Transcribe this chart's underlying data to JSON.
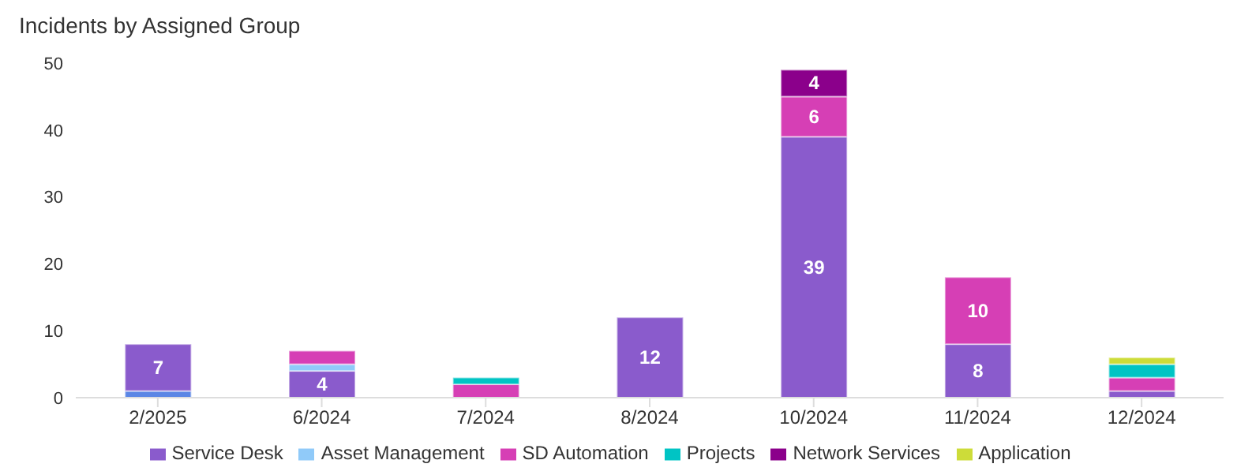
{
  "chart_data": {
    "type": "bar",
    "title": "Incidents by Assigned Group",
    "categories": [
      "2/2025",
      "6/2024",
      "7/2024",
      "8/2024",
      "10/2024",
      "11/2024",
      "12/2024"
    ],
    "stacked": true,
    "ylim": [
      0,
      50
    ],
    "yticks": [
      0,
      10,
      20,
      30,
      40,
      50
    ],
    "grid": false,
    "legend": "bottom",
    "series": [
      {
        "color": "#5b86e5",
        "values": [
          1,
          0,
          0,
          0,
          0,
          0,
          0
        ]
      },
      {
        "name": "Service Desk",
        "color": "#8a5bcc",
        "values": [
          7,
          4,
          0,
          12,
          39,
          8,
          1
        ],
        "value_labels": [
          "7",
          "4",
          null,
          "12",
          "39",
          "8",
          null
        ]
      },
      {
        "name": "Asset Management",
        "color": "#90caf9",
        "values": [
          0,
          1,
          0,
          0,
          0,
          0,
          0
        ]
      },
      {
        "name": "SD Automation",
        "color": "#d63fb5",
        "values": [
          0,
          2,
          2,
          0,
          6,
          10,
          2
        ],
        "value_labels": [
          null,
          null,
          null,
          null,
          "6",
          "10",
          null
        ]
      },
      {
        "name": "Projects",
        "color": "#00c4c4",
        "values": [
          0,
          0,
          1,
          0,
          0,
          0,
          2
        ]
      },
      {
        "name": "Network Services",
        "color": "#8b008b",
        "values": [
          0,
          0,
          0,
          0,
          4,
          0,
          0
        ],
        "value_labels": [
          null,
          null,
          null,
          null,
          "4",
          null,
          null
        ]
      },
      {
        "name": "Application",
        "color": "#cddc39",
        "values": [
          0,
          0,
          0,
          0,
          0,
          0,
          1
        ]
      }
    ]
  }
}
